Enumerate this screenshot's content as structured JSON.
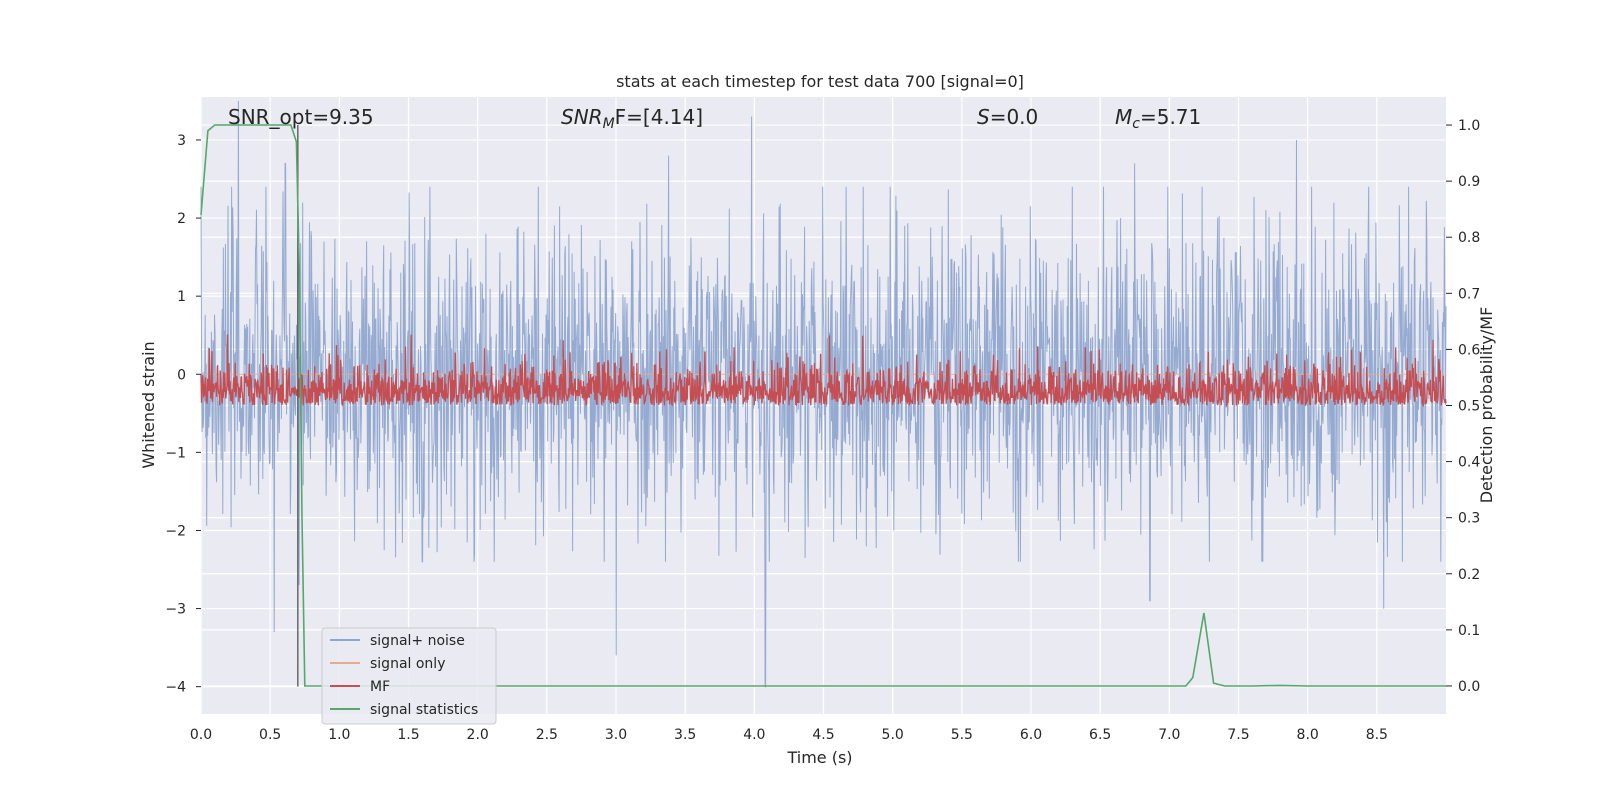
{
  "chart_data": {
    "type": "line",
    "title": "stats at each timestep for test data 700 [signal=0]",
    "xlabel": "Time (s)",
    "ylabel_left": "Whitened strain",
    "ylabel_right": "Detection probability/MF",
    "xlim": [
      0,
      9.0
    ],
    "ylim_left": [
      -4.35,
      3.55
    ],
    "ylim_right": [
      -0.05,
      1.05
    ],
    "xticks": [
      "0.0",
      "0.5",
      "1.0",
      "1.5",
      "2.0",
      "2.5",
      "3.0",
      "3.5",
      "4.0",
      "4.5",
      "5.0",
      "5.5",
      "6.0",
      "6.5",
      "7.0",
      "7.5",
      "8.0",
      "8.5"
    ],
    "yticks_left": [
      "3",
      "2",
      "1",
      "0",
      "−1",
      "−2",
      "−3",
      "−4"
    ],
    "yticks_right": [
      "1.0",
      "0.9",
      "0.8",
      "0.7",
      "0.6",
      "0.5",
      "0.4",
      "0.3",
      "0.2",
      "0.1",
      "0.0"
    ],
    "grid": true,
    "background": "#eaeaf2",
    "legend_position": "lower-left",
    "annotations": {
      "snr_opt": "SNR_opt=9.35",
      "snr_mf_main": "SNR",
      "snr_mf_sub": "M",
      "snr_mf_rest": "F=[4.14]",
      "s_main": "S",
      "s_rest": "=0.0",
      "mc_main": "M",
      "mc_sub": "c",
      "mc_rest": "=5.71"
    },
    "vertical_marker_x": 0.7,
    "series": [
      {
        "name": "signal+ noise",
        "color": "#8fa6cf",
        "axis": "left",
        "description_values": {
          "mean": 0.0,
          "std": 1.0,
          "approx_range": [
            -4.0,
            3.5
          ]
        },
        "spikes": [
          [
            0.27,
            3.5
          ],
          [
            0.53,
            -3.3
          ],
          [
            0.61,
            2.7
          ],
          [
            0.71,
            -2.7
          ],
          [
            3.0,
            -3.6
          ],
          [
            3.38,
            2.8
          ],
          [
            3.98,
            3.3
          ],
          [
            4.08,
            -4.0
          ],
          [
            7.92,
            3.0
          ],
          [
            6.75,
            2.7
          ],
          [
            8.55,
            -3.0
          ],
          [
            6.86,
            -2.9
          ]
        ]
      },
      {
        "name": "signal only",
        "color": "#e8a98f",
        "axis": "left",
        "values_const": 0.0
      },
      {
        "name": "MF",
        "color": "#c44e52",
        "axis": "right",
        "description_values": {
          "baseline": 0.5,
          "approx_range": [
            0.5,
            0.65
          ]
        }
      },
      {
        "name": "signal statistics",
        "color": "#55a868",
        "axis": "right",
        "x": [
          0.0,
          0.05,
          0.1,
          0.2,
          0.3,
          0.4,
          0.5,
          0.6,
          0.65,
          0.69,
          0.71,
          0.73,
          0.75,
          0.8,
          1.0,
          2.0,
          3.0,
          4.0,
          5.0,
          6.0,
          7.0,
          7.12,
          7.17,
          7.25,
          7.32,
          7.4,
          7.6,
          7.8,
          8.0,
          8.5,
          9.0
        ],
        "y": [
          0.84,
          0.99,
          1.0,
          1.0,
          1.0,
          1.0,
          1.0,
          1.0,
          1.0,
          0.97,
          0.75,
          0.3,
          0.0,
          0.0,
          0.0,
          0.0,
          0.0,
          0.0,
          0.0,
          0.0,
          0.0,
          0.0,
          0.015,
          0.13,
          0.005,
          0.0,
          0.0,
          0.001,
          0.0,
          0.0,
          0.0
        ]
      }
    ]
  }
}
